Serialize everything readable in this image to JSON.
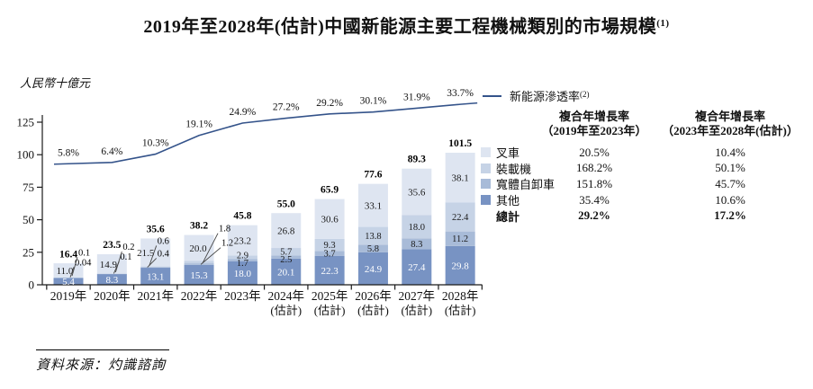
{
  "title": {
    "text": "2019年至2028年(估計)中國新能源主要工程機械類別的市場規模",
    "sup": "(1)"
  },
  "source": "資料來源：灼識諮詢",
  "chart_data": {
    "type": "bar",
    "stacked": true,
    "title": "2019年至2028年(估計)中國新能源主要工程機械類別的市場規模",
    "unit_label": "人民幣十億元",
    "xlabel": "",
    "ylabel": "人民幣十億元",
    "ylim": [
      0,
      125
    ],
    "yticks": [
      0,
      25,
      50,
      75,
      100,
      125
    ],
    "grid": false,
    "legend_position": "right",
    "categories": [
      "2019年",
      "2020年",
      "2021年",
      "2022年",
      "2023年",
      "2024年",
      "2025年",
      "2026年",
      "2027年",
      "2028年"
    ],
    "estimate_label": "(估計)",
    "estimated_from_index": 5,
    "stack_order": "bottom_to_top",
    "series": [
      {
        "name": "其他",
        "color": "#7893c3",
        "label_color": "#ffffff",
        "values": [
          5.4,
          8.3,
          13.1,
          15.3,
          18.0,
          20.1,
          22.3,
          24.9,
          27.4,
          29.8
        ],
        "labels": [
          "5.4",
          "8.3",
          "13.1",
          "15.3",
          "18.0",
          "20.1",
          "22.3",
          "24.9",
          "27.4",
          "29.8"
        ]
      },
      {
        "name": "寬體自卸車",
        "color": "#a8bbd8",
        "label_color": "#1a1a1a",
        "values": [
          0.04,
          0.1,
          0.4,
          1.2,
          1.7,
          2.5,
          3.7,
          5.8,
          8.3,
          11.2
        ],
        "labels": [
          "0.04",
          "0.1",
          "0.4",
          "1.2",
          "1.7",
          "2.5",
          "3.7",
          "5.8",
          "8.3",
          "11.2"
        ]
      },
      {
        "name": "裝載機",
        "color": "#c6d3e6",
        "label_color": "#1a1a1a",
        "values": [
          0.1,
          0.2,
          0.6,
          1.8,
          2.9,
          5.7,
          9.3,
          13.8,
          18.0,
          22.4
        ],
        "labels": [
          "0.1",
          "0.2",
          "0.6",
          "1.8",
          "2.9",
          "5.7",
          "9.3",
          "13.8",
          "18.0",
          "22.4"
        ]
      },
      {
        "name": "叉車",
        "color": "#dee5f1",
        "label_color": "#1a1a1a",
        "values": [
          11.0,
          14.9,
          21.5,
          20.0,
          23.2,
          26.8,
          30.6,
          33.1,
          35.6,
          38.1
        ],
        "labels": [
          "11.0",
          "14.9",
          "21.5",
          "20.0",
          "23.2",
          "26.8",
          "30.6",
          "33.1",
          "35.6",
          "38.1"
        ]
      }
    ],
    "totals": [
      16.4,
      23.5,
      35.6,
      38.2,
      45.8,
      55.0,
      65.9,
      77.6,
      89.3,
      101.5
    ],
    "total_labels": [
      "16.4",
      "23.5",
      "35.6",
      "38.2",
      "45.8",
      "55.0",
      "65.9",
      "77.6",
      "89.3",
      "101.5"
    ],
    "line": {
      "name": "新能源滲透率",
      "sup": "(2)",
      "color": "#34538a",
      "values_pct": [
        5.8,
        6.4,
        10.3,
        19.1,
        24.9,
        27.2,
        29.2,
        30.1,
        31.9,
        33.7
      ],
      "labels": [
        "5.8%",
        "6.4%",
        "10.3%",
        "19.1%",
        "24.9%",
        "27.2%",
        "29.2%",
        "30.1%",
        "31.9%",
        "33.7%"
      ]
    }
  },
  "table": {
    "col1_header_line1": "複合年增長率",
    "col1_header_line2": "（2019年至2023年）",
    "col2_header_line1": "複合年增長率",
    "col2_header_line2": "（2023年至2028年(估計)）",
    "rows": [
      {
        "label": "叉車",
        "cagr_2019_2023": "20.5%",
        "cagr_2023_2028": "10.4%",
        "swatch": "#dee5f1",
        "bold": false
      },
      {
        "label": "裝載機",
        "cagr_2019_2023": "168.2%",
        "cagr_2023_2028": "50.1%",
        "swatch": "#c6d3e6",
        "bold": false
      },
      {
        "label": "寬體自卸車",
        "cagr_2019_2023": "151.8%",
        "cagr_2023_2028": "45.7%",
        "swatch": "#a8bbd8",
        "bold": false
      },
      {
        "label": "其他",
        "cagr_2019_2023": "35.4%",
        "cagr_2023_2028": "10.6%",
        "swatch": "#7893c3",
        "bold": false
      },
      {
        "label": "總計",
        "cagr_2019_2023": "29.2%",
        "cagr_2023_2028": "17.2%",
        "swatch": null,
        "bold": true
      }
    ]
  },
  "colors": {
    "line": "#34538a",
    "axis": "#1a1a1a",
    "text": "#111111"
  }
}
